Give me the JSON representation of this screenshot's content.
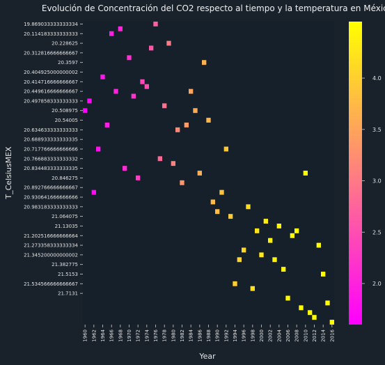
{
  "chart_data": {
    "type": "heatmap",
    "title": "Evolución de Concentración del CO2 respecto al tiempo y la temperatura en México",
    "xlabel": "Year",
    "ylabel": "T_CelsiusMEX",
    "x_tick_labels": [
      "1960",
      "1962",
      "1964",
      "1966",
      "1968",
      "1970",
      "1972",
      "1974",
      "1976",
      "1978",
      "1980",
      "1982",
      "1984",
      "1986",
      "1988",
      "1990",
      "1992",
      "1994",
      "1996",
      "1998",
      "2000",
      "2002",
      "2004",
      "2006",
      "2008",
      "2010",
      "2012",
      "2014",
      "2016"
    ],
    "y_tick_labels": [
      "19.869033333333334",
      "20.114183333333333",
      "20.228625",
      "20.312816666666667",
      "20.3597",
      "20.404925000000002",
      "20.414716666666667",
      "20.449616666666667",
      "20.497858333333333",
      "20.508975",
      "20.54005",
      "20.634633333333333",
      "20.688933333333335",
      "20.717766666666666",
      "20.766883333333332",
      "20.834483333333335",
      "20.846275",
      "20.892766666666667",
      "20.930641666666666",
      "20.983183333333333",
      "21.064075",
      "21.13035",
      "21.202516666666664",
      "21.273358333333334",
      "21.345200000000002",
      "21.382775",
      "21.5153",
      "21.534566666666667",
      "21.7131"
    ],
    "colorbar": {
      "min": 1.6,
      "max": 4.55,
      "ticks": [
        2.0,
        2.5,
        3.0,
        3.5,
        4.0
      ],
      "tick_labels": [
        "2.0",
        "2.5",
        "3.0",
        "3.5",
        "4.0"
      ]
    },
    "points": [
      {
        "year": 1960,
        "row": 18,
        "value": 1.6
      },
      {
        "year": 1961,
        "row": 16,
        "value": 1.7
      },
      {
        "year": 1962,
        "row": 35,
        "value": 1.75
      },
      {
        "year": 1963,
        "row": 26,
        "value": 1.8
      },
      {
        "year": 1964,
        "row": 11,
        "value": 1.85
      },
      {
        "year": 1965,
        "row": 21,
        "value": 1.9
      },
      {
        "year": 1966,
        "row": 2,
        "value": 1.95
      },
      {
        "year": 1967,
        "row": 14,
        "value": 2.0
      },
      {
        "year": 1968,
        "row": 1,
        "value": 2.05
      },
      {
        "year": 1969,
        "row": 30,
        "value": 2.1
      },
      {
        "year": 1970,
        "row": 7,
        "value": 2.15
      },
      {
        "year": 1971,
        "row": 15,
        "value": 2.2
      },
      {
        "year": 1972,
        "row": 32,
        "value": 2.3
      },
      {
        "year": 1973,
        "row": 12,
        "value": 2.4
      },
      {
        "year": 1974,
        "row": 13,
        "value": 2.5
      },
      {
        "year": 1975,
        "row": 5,
        "value": 2.6
      },
      {
        "year": 1976,
        "row": 0,
        "value": 2.7
      },
      {
        "year": 1977,
        "row": 28,
        "value": 2.8
      },
      {
        "year": 1978,
        "row": 17,
        "value": 2.9
      },
      {
        "year": 1979,
        "row": 4,
        "value": 3.0
      },
      {
        "year": 1980,
        "row": 29,
        "value": 3.1
      },
      {
        "year": 1981,
        "row": 22,
        "value": 3.2
      },
      {
        "year": 1982,
        "row": 33,
        "value": 3.3
      },
      {
        "year": 1983,
        "row": 21,
        "value": 3.4
      },
      {
        "year": 1984,
        "row": 14,
        "value": 3.5
      },
      {
        "year": 1985,
        "row": 18,
        "value": 3.55
      },
      {
        "year": 1986,
        "row": 31,
        "value": 3.6
      },
      {
        "year": 1987,
        "row": 8,
        "value": 3.65
      },
      {
        "year": 1988,
        "row": 20,
        "value": 3.7
      },
      {
        "year": 1989,
        "row": 37,
        "value": 3.75
      },
      {
        "year": 1990,
        "row": 39,
        "value": 3.8
      },
      {
        "year": 1991,
        "row": 35,
        "value": 3.85
      },
      {
        "year": 1992,
        "row": 26,
        "value": 3.9
      },
      {
        "year": 1993,
        "row": 40,
        "value": 3.95
      },
      {
        "year": 1994,
        "row": 54,
        "value": 4.0
      },
      {
        "year": 1995,
        "row": 49,
        "value": 4.05
      },
      {
        "year": 1996,
        "row": 47,
        "value": 4.1
      },
      {
        "year": 1997,
        "row": 38,
        "value": 4.15
      },
      {
        "year": 1998,
        "row": 55,
        "value": 4.2
      },
      {
        "year": 1999,
        "row": 43,
        "value": 4.25
      },
      {
        "year": 2000,
        "row": 48,
        "value": 4.3
      },
      {
        "year": 2001,
        "row": 41,
        "value": 4.35
      },
      {
        "year": 2002,
        "row": 45,
        "value": 4.4
      },
      {
        "year": 2003,
        "row": 49,
        "value": 4.42
      },
      {
        "year": 2004,
        "row": 42,
        "value": 4.44
      },
      {
        "year": 2005,
        "row": 51,
        "value": 4.46
      },
      {
        "year": 2006,
        "row": 57,
        "value": 4.48
      },
      {
        "year": 2007,
        "row": 44,
        "value": 4.5
      },
      {
        "year": 2008,
        "row": 43,
        "value": 4.52
      },
      {
        "year": 2009,
        "row": 59,
        "value": 4.54
      },
      {
        "year": 2010,
        "row": 31,
        "value": 4.55
      },
      {
        "year": 2011,
        "row": 60,
        "value": 4.55
      },
      {
        "year": 2012,
        "row": 61,
        "value": 4.55
      },
      {
        "year": 2013,
        "row": 46,
        "value": 4.55
      },
      {
        "year": 2014,
        "row": 52,
        "value": 4.55
      },
      {
        "year": 2015,
        "row": 58,
        "value": 4.55
      },
      {
        "year": 2016,
        "row": 62,
        "value": 4.55
      }
    ]
  }
}
